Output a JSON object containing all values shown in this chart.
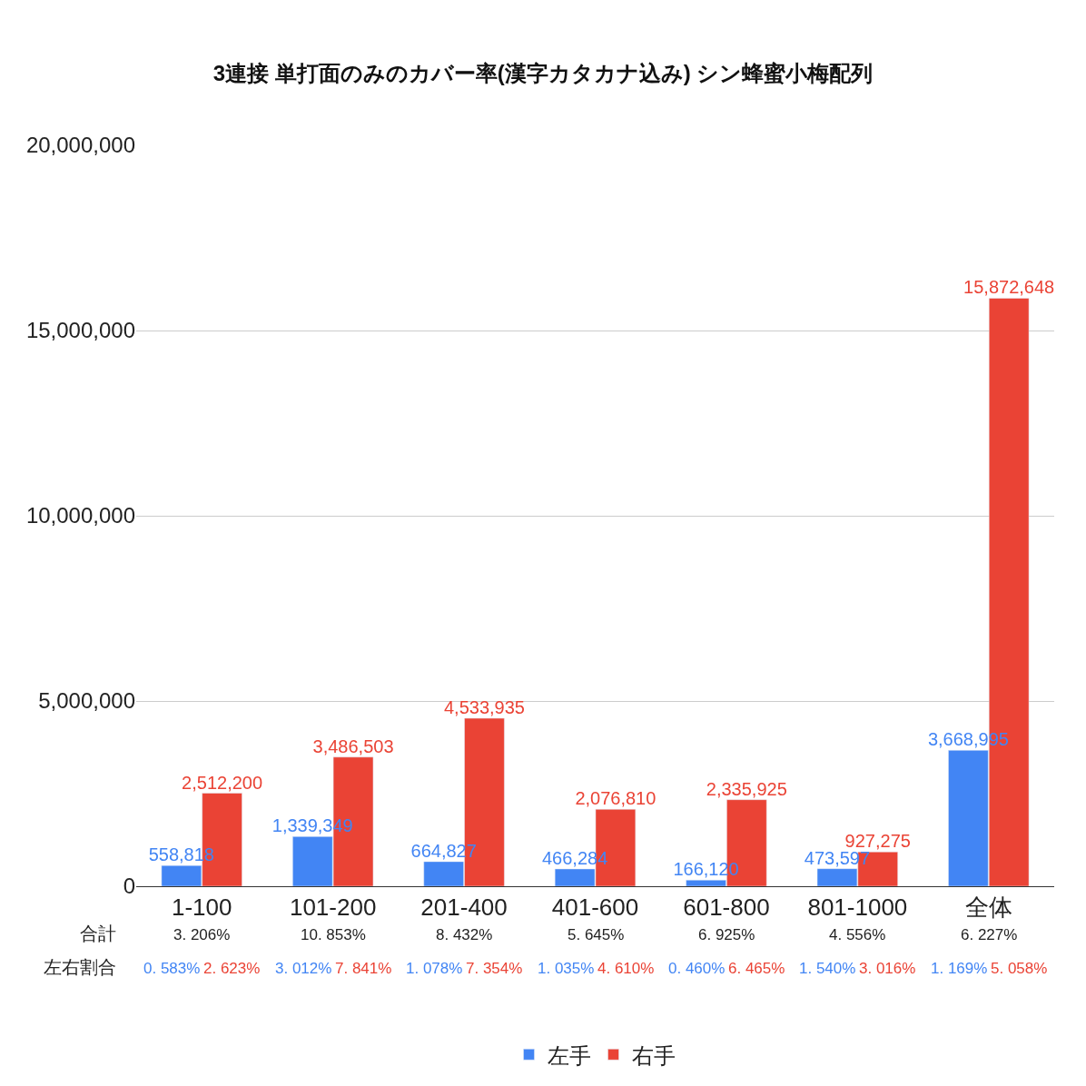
{
  "chart_data": {
    "type": "bar",
    "title": "3連接 単打面のみのカバー率(漢字カタカナ込み) シン蜂蜜小梅配列",
    "categories": [
      "1-100",
      "101-200",
      "201-400",
      "401-600",
      "601-800",
      "801-1000",
      "全体"
    ],
    "series": [
      {
        "name": "左手",
        "color": "#4285f4",
        "values": [
          558818,
          1339349,
          664827,
          466284,
          166120,
          473597,
          3668995
        ],
        "value_labels": [
          "558,818",
          "1,339,349",
          "664,827",
          "466,284",
          "166,120",
          "473,597",
          "3,668,995"
        ]
      },
      {
        "name": "右手",
        "color": "#ea4335",
        "values": [
          2512200,
          3486503,
          4533935,
          2076810,
          2335925,
          927275,
          15872648
        ],
        "value_labels": [
          "2,512,200",
          "3,486,503",
          "4,533,935",
          "2,076,810",
          "2,335,925",
          "927,275",
          "15,872,648"
        ]
      }
    ],
    "ylim": [
      0,
      20000000
    ],
    "yticks": [
      {
        "value": 0,
        "label": "0"
      },
      {
        "value": 5000000,
        "label": "5,000,000"
      },
      {
        "value": 10000000,
        "label": "10,000,000"
      },
      {
        "value": 15000000,
        "label": "15,000,000"
      },
      {
        "value": 20000000,
        "label": "20,000,000"
      }
    ],
    "grid": "y",
    "legend": "bottom",
    "annotations": [
      "合計",
      "左右割合",
      "3. 206%",
      "10. 853%",
      "8. 432%",
      "5. 645%",
      "6. 925%",
      "4. 556%",
      "6. 227%",
      "0. 583%",
      "2. 623%",
      "3. 012%",
      "7. 841%",
      "1. 078%",
      "7. 354%",
      "1. 035%",
      "4. 610%",
      "0. 460%",
      "6. 465%",
      "1. 540%",
      "3. 016%",
      "1. 169%",
      "5. 058%"
    ]
  }
}
